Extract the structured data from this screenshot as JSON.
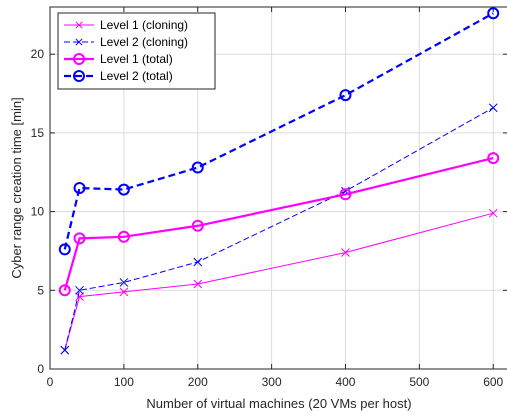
{
  "chart_data": {
    "type": "line",
    "xlabel": "Number of virtual machines (20 VMs per host)",
    "ylabel": "Cyber range creation time [min]",
    "xlim": [
      0,
      620
    ],
    "ylim": [
      0,
      23
    ],
    "xticks": [
      0,
      100,
      200,
      300,
      400,
      500,
      600
    ],
    "yticks": [
      0,
      5,
      10,
      15,
      20
    ],
    "grid": true,
    "legend_position": "top-left",
    "series": [
      {
        "name": "Level 1 (cloning)",
        "color": "#ff00ff",
        "line_style": "solid",
        "line_weight": "thin",
        "marker": "x",
        "x": [
          20,
          40,
          100,
          200,
          400,
          600
        ],
        "y": [
          1.2,
          4.6,
          4.9,
          5.4,
          7.4,
          9.9
        ]
      },
      {
        "name": "Level 2 (cloning)",
        "color": "#0000ff",
        "line_style": "dashed",
        "line_weight": "thin",
        "marker": "x",
        "x": [
          20,
          40,
          100,
          200,
          400,
          600
        ],
        "y": [
          1.2,
          5.0,
          5.5,
          6.8,
          11.3,
          16.6
        ]
      },
      {
        "name": "Level 1 (total)",
        "color": "#ff00ff",
        "line_style": "solid",
        "line_weight": "thick",
        "marker": "circle",
        "x": [
          20,
          40,
          100,
          200,
          400,
          600
        ],
        "y": [
          5.0,
          8.3,
          8.4,
          9.1,
          11.1,
          13.4
        ]
      },
      {
        "name": "Level 2 (total)",
        "color": "#0000ff",
        "line_style": "dashed",
        "line_weight": "thick",
        "marker": "circle",
        "x": [
          20,
          40,
          100,
          200,
          400,
          600
        ],
        "y": [
          7.6,
          11.5,
          11.4,
          12.8,
          17.4,
          22.6
        ]
      }
    ]
  }
}
